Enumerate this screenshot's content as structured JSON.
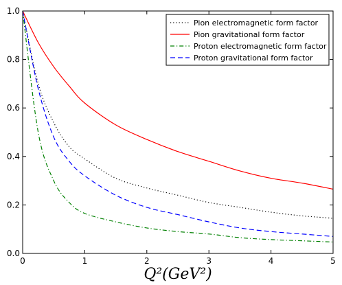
{
  "chart_data": {
    "type": "line",
    "xlim": [
      0,
      5
    ],
    "ylim": [
      0.0,
      1.0
    ],
    "x_ticks": [
      0,
      1,
      2,
      3,
      4,
      5
    ],
    "y_ticks": [
      0.0,
      0.2,
      0.4,
      0.6,
      0.8,
      1.0
    ],
    "x_tick_labels": [
      "0",
      "1",
      "2",
      "3",
      "4",
      "5"
    ],
    "y_tick_labels": [
      "0.0",
      "0.2",
      "0.4",
      "0.6",
      "0.8",
      "1.0"
    ],
    "xlabel": "Q²(GeV²)",
    "ylabel": "",
    "grid": false,
    "legend_position": "top-right",
    "x": [
      0,
      0.25,
      0.5,
      0.75,
      1,
      1.5,
      2,
      2.5,
      3,
      3.5,
      4,
      4.5,
      5
    ],
    "series": [
      {
        "name": "Pion electromagnetic form factor",
        "color": "#000000",
        "dash": "dotted",
        "values": [
          1.0,
          0.7,
          0.54,
          0.44,
          0.39,
          0.31,
          0.27,
          0.24,
          0.21,
          0.19,
          0.17,
          0.155,
          0.145
        ]
      },
      {
        "name": "Pion gravitational form factor",
        "color": "#ff0000",
        "dash": "solid",
        "values": [
          1.0,
          0.87,
          0.77,
          0.69,
          0.62,
          0.53,
          0.47,
          0.42,
          0.38,
          0.34,
          0.31,
          0.29,
          0.265
        ]
      },
      {
        "name": "Proton electromagnetic form factor",
        "color": "#008000",
        "dash": "dashdot",
        "values": [
          1.0,
          0.5,
          0.3,
          0.21,
          0.165,
          0.13,
          0.105,
          0.09,
          0.08,
          0.065,
          0.057,
          0.052,
          0.047
        ]
      },
      {
        "name": "Proton gravitational form factor",
        "color": "#0000ff",
        "dash": "dashed",
        "values": [
          1.0,
          0.68,
          0.48,
          0.38,
          0.32,
          0.24,
          0.19,
          0.16,
          0.13,
          0.105,
          0.09,
          0.08,
          0.07
        ]
      }
    ]
  }
}
